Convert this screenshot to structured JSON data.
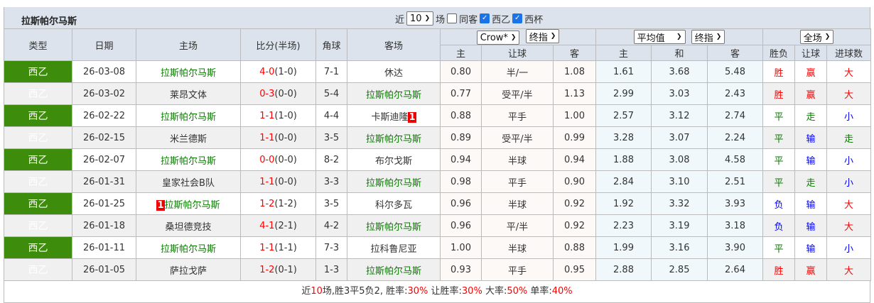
{
  "title": "拉斯帕尔马斯",
  "filters": {
    "near_label": "近",
    "count": "10",
    "games_label": "场",
    "same_home_label": "同客",
    "same_home_checked": false,
    "leagues": [
      {
        "label": "西乙",
        "checked": true
      },
      {
        "label": "西杯",
        "checked": true
      }
    ]
  },
  "headers": {
    "type": "类型",
    "date": "日期",
    "home": "主场",
    "score": "比分(半场)",
    "corner": "角球",
    "away": "客场",
    "odds1_company": "Crow*",
    "odds1_kind": "终指",
    "odds1_cols": [
      "主",
      "让球",
      "客"
    ],
    "odds2_company": "平均值",
    "odds2_kind": "终指",
    "odds2_cols": [
      "主",
      "和",
      "客"
    ],
    "result_scope": "全场",
    "result_cols": [
      "胜负",
      "让球",
      "进球数"
    ]
  },
  "colors": {
    "league_bg": "#3e8c0c",
    "team_highlight": "#0a7a00",
    "win": "#ff0000",
    "draw": "#0a7a00",
    "lose": "#0000ff"
  },
  "rows": [
    {
      "league": "西乙",
      "date": "26-03-08",
      "home": "拉斯帕尔马斯",
      "home_badge": "",
      "score": "4-0",
      "half": "(1-0)",
      "corner": "7-1",
      "away": "休达",
      "away_badge": "",
      "h": "0.80",
      "hcp": "半/一",
      "a": "1.08",
      "w": "1.61",
      "d": "3.68",
      "l": "5.48",
      "res": "胜",
      "hres": "赢",
      "ou": "大"
    },
    {
      "league": "西乙",
      "date": "26-03-02",
      "home": "莱昂文体",
      "home_badge": "",
      "score": "0-3",
      "half": "(0-0)",
      "corner": "5-4",
      "away": "拉斯帕尔马斯",
      "away_badge": "",
      "h": "0.77",
      "hcp": "受平/半",
      "a": "1.13",
      "w": "2.99",
      "d": "3.03",
      "l": "2.43",
      "res": "胜",
      "hres": "赢",
      "ou": "大"
    },
    {
      "league": "西乙",
      "date": "26-02-22",
      "home": "拉斯帕尔马斯",
      "home_badge": "",
      "score": "1-1",
      "half": "(1-0)",
      "corner": "4-4",
      "away": "卡斯迪隆",
      "away_badge": "1",
      "h": "0.88",
      "hcp": "平手",
      "a": "1.00",
      "w": "2.57",
      "d": "3.12",
      "l": "2.74",
      "res": "平",
      "hres": "走",
      "ou": "小"
    },
    {
      "league": "西乙",
      "date": "26-02-15",
      "home": "米兰德斯",
      "home_badge": "",
      "score": "1-1",
      "half": "(0-0)",
      "corner": "3-5",
      "away": "拉斯帕尔马斯",
      "away_badge": "",
      "h": "0.89",
      "hcp": "受平/半",
      "a": "0.99",
      "w": "3.28",
      "d": "3.07",
      "l": "2.24",
      "res": "平",
      "hres": "输",
      "ou": "走"
    },
    {
      "league": "西乙",
      "date": "26-02-07",
      "home": "拉斯帕尔马斯",
      "home_badge": "",
      "score": "0-0",
      "half": "(0-0)",
      "corner": "8-2",
      "away": "布尔戈斯",
      "away_badge": "",
      "h": "0.94",
      "hcp": "半球",
      "a": "0.94",
      "w": "1.88",
      "d": "3.08",
      "l": "4.58",
      "res": "平",
      "hres": "输",
      "ou": "小"
    },
    {
      "league": "西乙",
      "date": "26-01-31",
      "home": "皇家社会B队",
      "home_badge": "",
      "score": "1-1",
      "half": "(0-0)",
      "corner": "3-3",
      "away": "拉斯帕尔马斯",
      "away_badge": "",
      "h": "0.98",
      "hcp": "平手",
      "a": "0.90",
      "w": "2.84",
      "d": "3.10",
      "l": "2.51",
      "res": "平",
      "hres": "走",
      "ou": "小"
    },
    {
      "league": "西乙",
      "date": "26-01-25",
      "home": "拉斯帕尔马斯",
      "home_badge": "1",
      "score": "1-2",
      "half": "(1-2)",
      "corner": "3-5",
      "away": "科尔多瓦",
      "away_badge": "",
      "h": "0.96",
      "hcp": "半球",
      "a": "0.92",
      "w": "1.92",
      "d": "3.32",
      "l": "3.93",
      "res": "负",
      "hres": "输",
      "ou": "大"
    },
    {
      "league": "西乙",
      "date": "26-01-18",
      "home": "桑坦德竞技",
      "home_badge": "",
      "score": "4-1",
      "half": "(2-1)",
      "corner": "4-2",
      "away": "拉斯帕尔马斯",
      "away_badge": "",
      "h": "0.96",
      "hcp": "平/半",
      "a": "0.92",
      "w": "2.23",
      "d": "3.19",
      "l": "3.18",
      "res": "负",
      "hres": "输",
      "ou": "大"
    },
    {
      "league": "西乙",
      "date": "26-01-11",
      "home": "拉斯帕尔马斯",
      "home_badge": "",
      "score": "1-1",
      "half": "(1-1)",
      "corner": "7-3",
      "away": "拉科鲁尼亚",
      "away_badge": "",
      "h": "1.00",
      "hcp": "半球",
      "a": "0.88",
      "w": "1.99",
      "d": "3.16",
      "l": "3.90",
      "res": "平",
      "hres": "输",
      "ou": "小"
    },
    {
      "league": "西乙",
      "date": "26-01-05",
      "home": "萨拉戈萨",
      "home_badge": "",
      "score": "1-2",
      "half": "(0-1)",
      "corner": "1-3",
      "away": "拉斯帕尔马斯",
      "away_badge": "",
      "h": "0.93",
      "hcp": "平手",
      "a": "0.95",
      "w": "2.88",
      "d": "2.85",
      "l": "2.64",
      "res": "胜",
      "hres": "赢",
      "ou": "大"
    }
  ],
  "footer": {
    "p1": "近",
    "n": "10",
    "p2": "场,胜3平5负2, 胜率:",
    "win_rate": "30%",
    "p3": " 让胜率:",
    "hcp_rate": "30%",
    "p4": " 大率:",
    "over_rate": "50%",
    "p5": " 单率:",
    "odd_rate": "40%"
  }
}
